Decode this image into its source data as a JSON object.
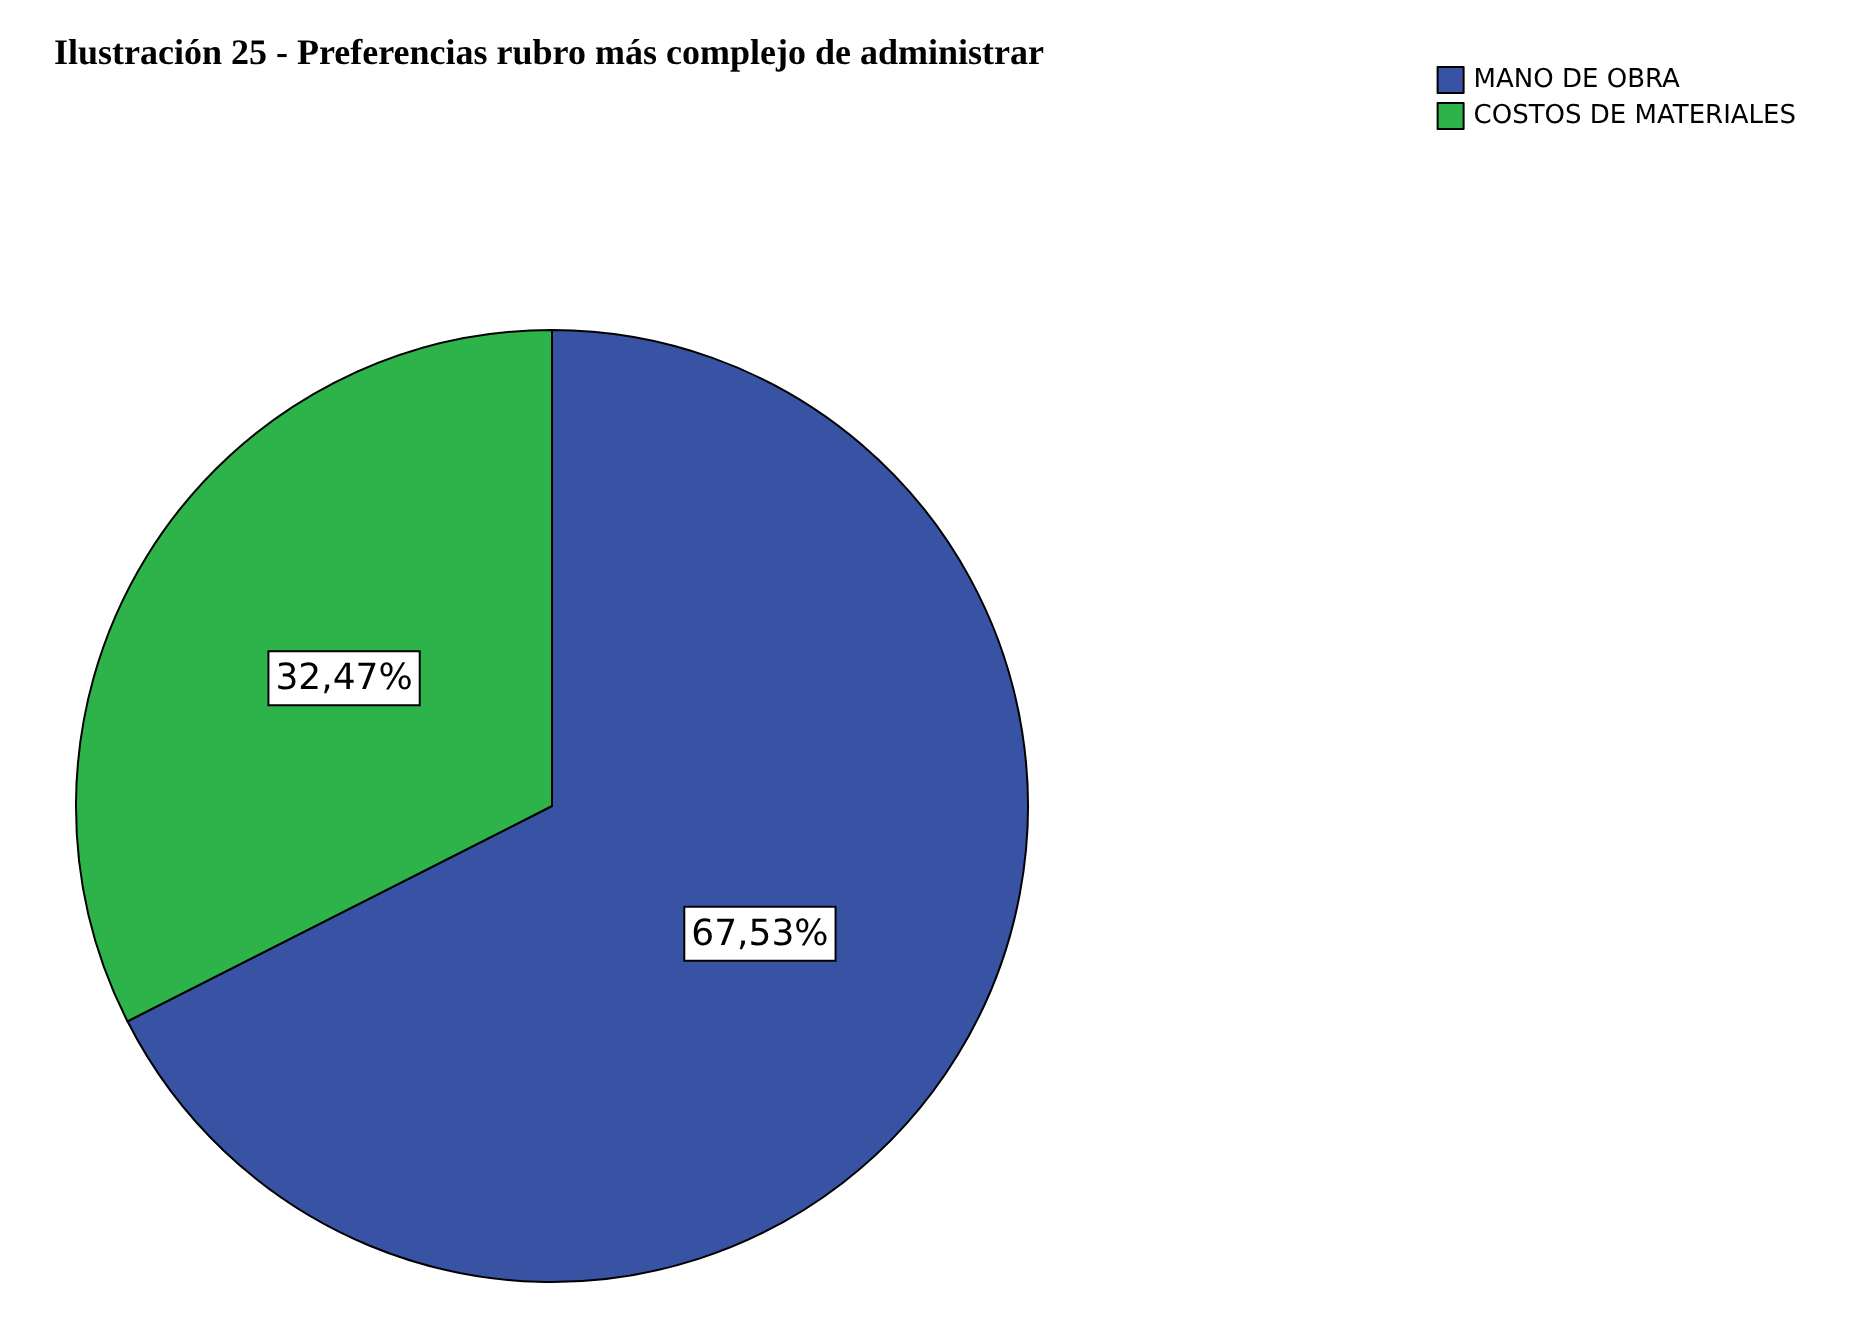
{
  "chart_data": {
    "type": "pie",
    "title": "Ilustración 25 - Preferencias rubro más complejo de administrar",
    "categories": [
      "MANO DE OBRA",
      "COSTOS DE MATERIALES"
    ],
    "values": [
      67.53,
      32.47
    ],
    "value_labels": [
      "67,53%",
      "32,47%"
    ],
    "colors": [
      "#3953a4",
      "#2db34a"
    ],
    "legend": "top right"
  }
}
